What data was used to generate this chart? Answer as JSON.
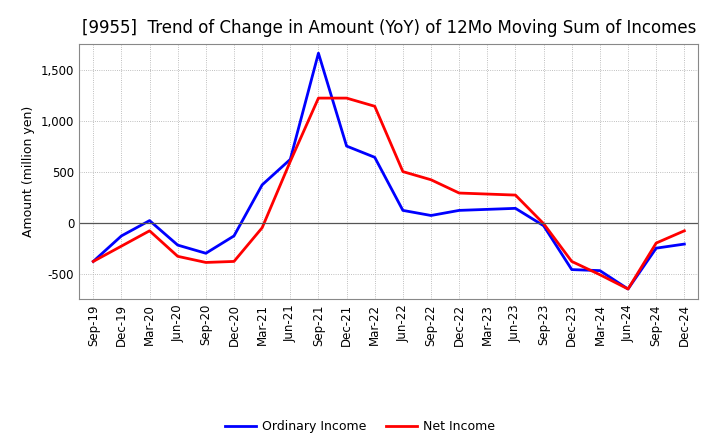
{
  "title": "[9955]  Trend of Change in Amount (YoY) of 12Mo Moving Sum of Incomes",
  "ylabel": "Amount (million yen)",
  "ylim": [
    -750,
    1750
  ],
  "yticks": [
    -500,
    0,
    500,
    1000,
    1500
  ],
  "background_color": "#ffffff",
  "grid_color": "#aaaaaa",
  "x_labels": [
    "Sep-19",
    "Dec-19",
    "Mar-20",
    "Jun-20",
    "Sep-20",
    "Dec-20",
    "Mar-21",
    "Jun-21",
    "Sep-21",
    "Dec-21",
    "Mar-22",
    "Jun-22",
    "Sep-22",
    "Dec-22",
    "Mar-23",
    "Jun-23",
    "Sep-23",
    "Dec-23",
    "Mar-24",
    "Jun-24",
    "Sep-24",
    "Dec-24"
  ],
  "ordinary_income": [
    -380,
    -130,
    20,
    -220,
    -300,
    -130,
    370,
    620,
    1660,
    750,
    640,
    120,
    70,
    120,
    130,
    140,
    -30,
    -460,
    -470,
    -650,
    -250,
    -210
  ],
  "net_income": [
    -380,
    -230,
    -80,
    -330,
    -390,
    -380,
    -50,
    600,
    1220,
    1220,
    1140,
    500,
    420,
    290,
    280,
    270,
    -10,
    -380,
    -510,
    -650,
    -200,
    -80
  ],
  "ordinary_income_color": "#0000ff",
  "net_income_color": "#ff0000",
  "line_width": 2.0,
  "legend_labels": [
    "Ordinary Income",
    "Net Income"
  ],
  "title_fontsize": 12,
  "label_fontsize": 9,
  "tick_fontsize": 8.5,
  "spine_color": "#888888"
}
